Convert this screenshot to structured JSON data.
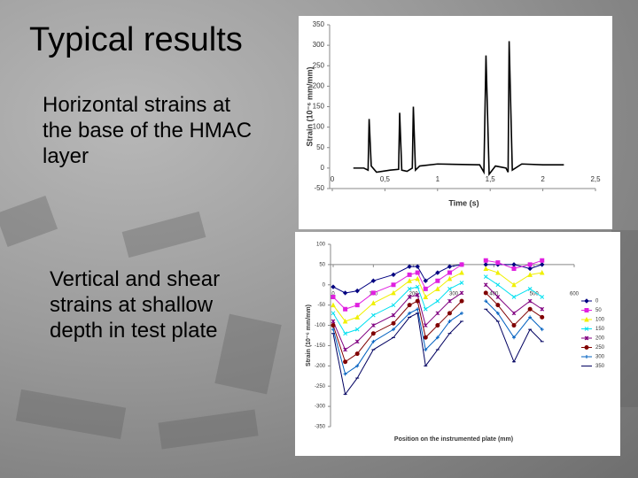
{
  "slide": {
    "title": "Typical results",
    "bullets": [
      "Horizontal strains at the base of the HMAC layer",
      "Vertical and shear strains at shallow depth in test plate"
    ]
  },
  "chart_data": [
    {
      "type": "line",
      "xlabel": "Time (s)",
      "ylabel": "Strain (10⁻⁶ mm/mm)",
      "xlim": [
        0,
        2.5
      ],
      "ylim": [
        -50,
        350
      ],
      "xticks": [
        0,
        {
          "value": 0.5,
          "label": "0,5"
        },
        1,
        {
          "value": 1.5,
          "label": "1,5"
        },
        2,
        {
          "value": 2.5,
          "label": "2,5"
        }
      ],
      "yticks": [
        -50,
        0,
        50,
        100,
        150,
        200,
        250,
        300,
        350
      ],
      "x": [
        0.2,
        0.3,
        0.34,
        0.35,
        0.37,
        0.42,
        0.55,
        0.63,
        0.64,
        0.66,
        0.71,
        0.76,
        0.77,
        0.79,
        0.83,
        1.0,
        1.4,
        1.44,
        1.46,
        1.49,
        1.55,
        1.65,
        1.67,
        1.68,
        1.71,
        1.8,
        2.0,
        2.2
      ],
      "series": [
        {
          "color": "#000000",
          "values": [
            0,
            0,
            -5,
            120,
            5,
            -10,
            -5,
            -3,
            135,
            -5,
            -8,
            0,
            150,
            -5,
            5,
            10,
            8,
            -10,
            275,
            -15,
            5,
            0,
            -10,
            310,
            -5,
            10,
            8,
            8
          ]
        }
      ]
    },
    {
      "type": "line",
      "xlabel": "Position on the instrumented plate (mm)",
      "ylabel": "Strain (10⁻⁶ mm/mm)",
      "xlim": [
        0,
        600
      ],
      "ylim": [
        -350,
        100
      ],
      "xticks": [
        0,
        100,
        200,
        300,
        400,
        500,
        600
      ],
      "yticks": [
        -350,
        -300,
        -250,
        -200,
        -150,
        -100,
        -50,
        0,
        50,
        100
      ],
      "x": [
        0,
        30,
        60,
        100,
        150,
        190,
        210,
        230,
        260,
        290,
        320,
        350,
        380,
        410,
        450,
        490,
        520
      ],
      "series": [
        {
          "name": "0",
          "color": "#000080",
          "marker": "diamond",
          "values": [
            -5,
            -20,
            -15,
            10,
            25,
            45,
            45,
            10,
            30,
            45,
            50,
            null,
            50,
            50,
            50,
            40,
            50
          ]
        },
        {
          "name": "50",
          "color": "#e020e0",
          "marker": "square",
          "values": [
            -30,
            -60,
            -50,
            -20,
            0,
            25,
            30,
            -10,
            10,
            30,
            50,
            null,
            60,
            55,
            40,
            50,
            60
          ]
        },
        {
          "name": "100",
          "color": "#f0f000",
          "marker": "triangle",
          "values": [
            -50,
            -90,
            -80,
            -45,
            -20,
            10,
            15,
            -30,
            -10,
            15,
            30,
            null,
            40,
            30,
            0,
            25,
            30
          ]
        },
        {
          "name": "150",
          "color": "#00e0f0",
          "marker": "x",
          "values": [
            -70,
            -120,
            -110,
            -75,
            -50,
            -10,
            -5,
            -60,
            -40,
            -10,
            5,
            null,
            20,
            0,
            -30,
            -10,
            -30
          ]
        },
        {
          "name": "200",
          "color": "#800080",
          "marker": "star",
          "values": [
            -90,
            -160,
            -140,
            -100,
            -75,
            -30,
            -25,
            -100,
            -70,
            -40,
            -20,
            null,
            0,
            -30,
            -70,
            -40,
            -60
          ]
        },
        {
          "name": "250",
          "color": "#800000",
          "marker": "circle",
          "values": [
            -100,
            -190,
            -170,
            -120,
            -95,
            -50,
            -40,
            -130,
            -100,
            -70,
            -40,
            null,
            -20,
            -50,
            -100,
            -60,
            -80
          ]
        },
        {
          "name": "300",
          "color": "#0060c0",
          "marker": "plus",
          "values": [
            -110,
            -220,
            -200,
            -140,
            -110,
            -70,
            -60,
            -160,
            -130,
            -90,
            -70,
            null,
            -40,
            -70,
            -130,
            -80,
            -110
          ]
        },
        {
          "name": "350",
          "color": "#000060",
          "marker": "dash",
          "values": [
            -120,
            -270,
            -230,
            -160,
            -130,
            -80,
            -70,
            -200,
            -160,
            -120,
            -90,
            null,
            -60,
            -90,
            -190,
            -110,
            -140
          ]
        }
      ]
    }
  ]
}
